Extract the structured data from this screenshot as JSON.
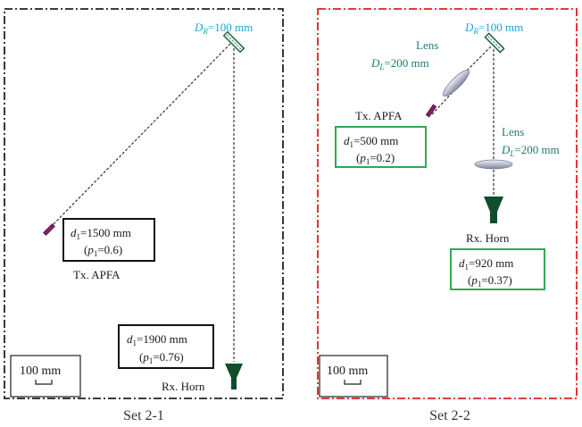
{
  "colors": {
    "frame_left": "#222222",
    "frame_right": "#e01e1e",
    "reflector_label": "#1ba6d0",
    "lens_label": "#1d7a72",
    "box_left": "#111111",
    "box_right": "#2faa52",
    "horn": "#0f4d2c",
    "antenna": "#8a1f6e"
  },
  "set1": {
    "caption": "Set 2-1",
    "reflector": {
      "symbol": "D",
      "sub": "R",
      "value": "=100 mm"
    },
    "tx_label": "Tx. APFA",
    "rx_label": "Rx. Horn",
    "box_tx": {
      "line1_sym": "d",
      "line1_sub": "1",
      "line1_val": "=1500 mm",
      "line2_open": "(",
      "line2_sym": "p",
      "line2_sub": "1",
      "line2_val": "=0.6)"
    },
    "box_rx": {
      "line1_sym": "d",
      "line1_sub": "1",
      "line1_val": "=1900 mm",
      "line2_open": "(",
      "line2_sym": "p",
      "line2_sub": "1",
      "line2_val": "=0.76)"
    },
    "scale": "100 mm"
  },
  "set2": {
    "caption": "Set 2-2",
    "reflector": {
      "symbol": "D",
      "sub": "R",
      "value": "=100 mm"
    },
    "lens1": {
      "title": "Lens",
      "symbol": "D",
      "sub": "L",
      "value": "=200 mm"
    },
    "lens2": {
      "title": "Lens",
      "symbol": "D",
      "sub": "L",
      "value": "=200 mm"
    },
    "tx_label": "Tx. APFA",
    "rx_label": "Rx. Horn",
    "box_tx": {
      "line1_sym": "d",
      "line1_sub": "1",
      "line1_val": "=500 mm",
      "line2_open": "(",
      "line2_sym": "p",
      "line2_sub": "1",
      "line2_val": "=0.2)"
    },
    "box_rx": {
      "line1_sym": "d",
      "line1_sub": "1",
      "line1_val": "=920 mm",
      "line2_open": "(",
      "line2_sym": "p",
      "line2_sub": "1",
      "line2_val": "=0.37)"
    },
    "scale": "100 mm"
  }
}
